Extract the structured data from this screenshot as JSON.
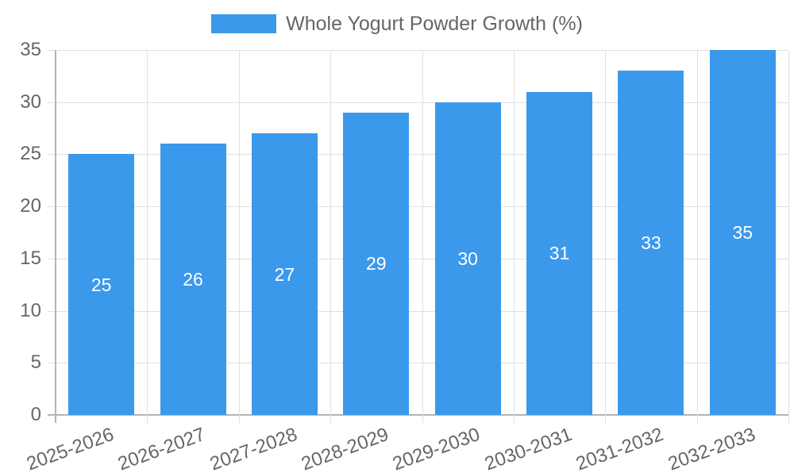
{
  "chart_data": {
    "type": "bar",
    "title": "",
    "xlabel": "",
    "ylabel": "",
    "categories": [
      "2025-2026",
      "2026-2027",
      "2027-2028",
      "2028-2029",
      "2029-2030",
      "2030-2031",
      "2031-2032",
      "2032-2033"
    ],
    "series": [
      {
        "name": "Whole Yogurt Powder Growth (%)",
        "values": [
          25,
          26,
          27,
          29,
          30,
          31,
          33,
          35
        ]
      }
    ],
    "ylim": [
      0,
      35
    ],
    "yticks": [
      0,
      5,
      10,
      15,
      20,
      25,
      30,
      35
    ],
    "grid": true,
    "legend_position": "top",
    "value_labels": "inside-middle",
    "colors": {
      "bar": "#3B99EC",
      "value_label": "#FFFFFF",
      "axis_text": "#666666",
      "gridline": "#E0E0E0",
      "axis_line": "#B3B3B3"
    }
  },
  "legend": {
    "label": "Whole Yogurt Powder Growth (%)"
  }
}
